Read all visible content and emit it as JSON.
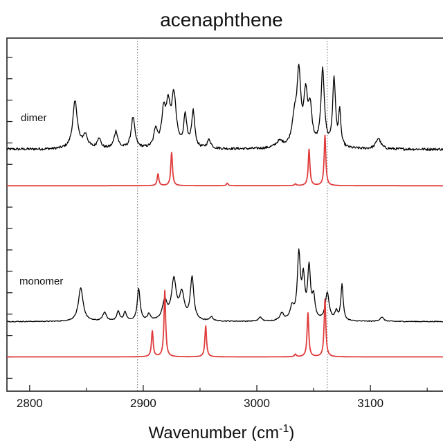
{
  "chart_data": {
    "type": "line",
    "title": "acenaphthene",
    "xlabel_main": "Wavenumber (cm",
    "xlabel_sup": "-1",
    "xlabel_end": ")",
    "xlim": [
      2780,
      3170
    ],
    "x_ticks": [
      2800,
      2900,
      3000,
      3100
    ],
    "x_tick_labels": [
      "2800",
      "2900",
      "3000",
      "3100"
    ],
    "vlines": [
      2895,
      3062
    ],
    "trace_labels": [
      "dimer",
      "monomer"
    ],
    "colors": {
      "experimental": "#000000",
      "calculated": "#e03c3c",
      "reference": "#666666"
    },
    "series": [
      {
        "id": "dimer_experimental",
        "kind": "experimental",
        "baseline_offset": 3.55,
        "baseline": 0.15,
        "noise": 0.06,
        "peaks": [
          [
            2840,
            2.2,
            2.5
          ],
          [
            2849,
            0.6,
            2.5
          ],
          [
            2861,
            0.5,
            1.8
          ],
          [
            2876,
            0.8,
            2
          ],
          [
            2891,
            1.45,
            2
          ],
          [
            2911,
            0.85,
            1.8
          ],
          [
            2918,
            1.6,
            2.2
          ],
          [
            2922,
            1.7,
            2
          ],
          [
            2927,
            2.4,
            2.4
          ],
          [
            2937,
            1.5,
            1.6
          ],
          [
            2944,
            1.7,
            1.6
          ],
          [
            2958,
            0.4,
            2
          ],
          [
            3020,
            0.3,
            4
          ],
          [
            3033,
            1.2,
            2.5
          ],
          [
            3037,
            3.3,
            2
          ],
          [
            3043,
            2.3,
            2
          ],
          [
            3047,
            1.6,
            2
          ],
          [
            3058,
            3.6,
            1.8
          ],
          [
            3068,
            3.2,
            1.5
          ],
          [
            3073,
            1.6,
            1.2
          ],
          [
            3107,
            0.5,
            2.5
          ]
        ]
      },
      {
        "id": "dimer_calculated",
        "kind": "calculated",
        "baseline_offset": 2.0,
        "peaks": [
          [
            2913,
            0.55,
            0.9
          ],
          [
            2925,
            1.55,
            0.9
          ],
          [
            2974,
            0.12,
            0.9
          ],
          [
            3034,
            0.08,
            0.9
          ],
          [
            3046,
            1.7,
            0.9
          ],
          [
            3060,
            2.35,
            0.9
          ]
        ]
      },
      {
        "id": "monomer_experimental",
        "kind": "experimental",
        "baseline_offset": -4.45,
        "baseline": 0.1,
        "noise": 0.02,
        "peaks": [
          [
            2845,
            1.55,
            2.5
          ],
          [
            2866,
            0.4,
            2
          ],
          [
            2878,
            0.45,
            1.5
          ],
          [
            2884,
            0.4,
            1.5
          ],
          [
            2896,
            1.5,
            1.5
          ],
          [
            2905,
            0.3,
            1.5
          ],
          [
            2919,
            0.9,
            2.5
          ],
          [
            2927,
            1.85,
            2.5
          ],
          [
            2934,
            1.2,
            2.5
          ],
          [
            2943,
            2.0,
            1.8
          ],
          [
            2960,
            0.2,
            1.5
          ],
          [
            3003,
            0.2,
            1.5
          ],
          [
            3022,
            0.35,
            2
          ],
          [
            3031,
            0.6,
            2
          ],
          [
            3037,
            3.0,
            1.6
          ],
          [
            3041,
            1.8,
            1.5
          ],
          [
            3046,
            2.4,
            1.5
          ],
          [
            3050,
            1.0,
            1.5
          ],
          [
            3062,
            1.3,
            2
          ],
          [
            3070,
            0.4,
            1.5
          ],
          [
            3075,
            1.7,
            1.2
          ],
          [
            3110,
            0.2,
            2
          ]
        ]
      },
      {
        "id": "monomer_calculated",
        "kind": "calculated",
        "baseline_offset": -6.0,
        "peaks": [
          [
            2908,
            1.2,
            0.9
          ],
          [
            2919,
            3.1,
            0.9
          ],
          [
            2955,
            1.45,
            0.9
          ],
          [
            3034,
            0.12,
            0.9
          ],
          [
            3045,
            2.05,
            0.9
          ],
          [
            3060,
            2.7,
            0.9
          ]
        ]
      }
    ]
  }
}
